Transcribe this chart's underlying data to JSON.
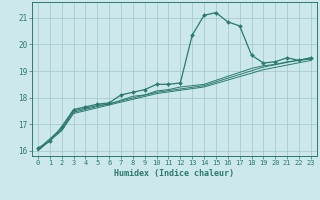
{
  "title": "",
  "xlabel": "Humidex (Indice chaleur)",
  "ylabel": "",
  "background_color": "#cce8ec",
  "grid_color": "#a8cccc",
  "line_color": "#2a7a70",
  "xlim": [
    -0.5,
    23.5
  ],
  "ylim": [
    15.8,
    21.6
  ],
  "yticks": [
    16,
    17,
    18,
    19,
    20,
    21
  ],
  "xticks": [
    0,
    1,
    2,
    3,
    4,
    5,
    6,
    7,
    8,
    9,
    10,
    11,
    12,
    13,
    14,
    15,
    16,
    17,
    18,
    19,
    20,
    21,
    22,
    23
  ],
  "series": [
    {
      "x": [
        0,
        1,
        2,
        3,
        4,
        5,
        6,
        7,
        8,
        9,
        10,
        11,
        12,
        13,
        14,
        15,
        16,
        17,
        18,
        19,
        20,
        21,
        22,
        23
      ],
      "y": [
        16.1,
        16.35,
        16.9,
        17.55,
        17.65,
        17.75,
        17.8,
        18.1,
        18.2,
        18.3,
        18.5,
        18.5,
        18.55,
        20.35,
        21.1,
        21.2,
        20.85,
        20.7,
        19.6,
        19.3,
        19.35,
        19.5,
        19.4,
        19.5
      ],
      "marker": true
    },
    {
      "x": [
        0,
        2,
        3,
        4,
        5,
        6,
        7,
        8,
        9,
        10,
        11,
        12,
        13,
        14,
        18,
        19,
        20,
        21,
        22,
        23
      ],
      "y": [
        16.05,
        16.85,
        17.5,
        17.6,
        17.7,
        17.75,
        17.9,
        18.05,
        18.1,
        18.25,
        18.3,
        18.4,
        18.45,
        18.5,
        19.1,
        19.2,
        19.25,
        19.35,
        19.4,
        19.45
      ],
      "marker": false
    },
    {
      "x": [
        0,
        2,
        3,
        10,
        14,
        19,
        23
      ],
      "y": [
        16.0,
        16.8,
        17.45,
        18.2,
        18.45,
        19.15,
        19.5
      ],
      "marker": false
    },
    {
      "x": [
        0,
        2,
        3,
        10,
        14,
        19,
        23
      ],
      "y": [
        16.0,
        16.75,
        17.4,
        18.15,
        18.4,
        19.05,
        19.4
      ],
      "marker": false
    }
  ]
}
